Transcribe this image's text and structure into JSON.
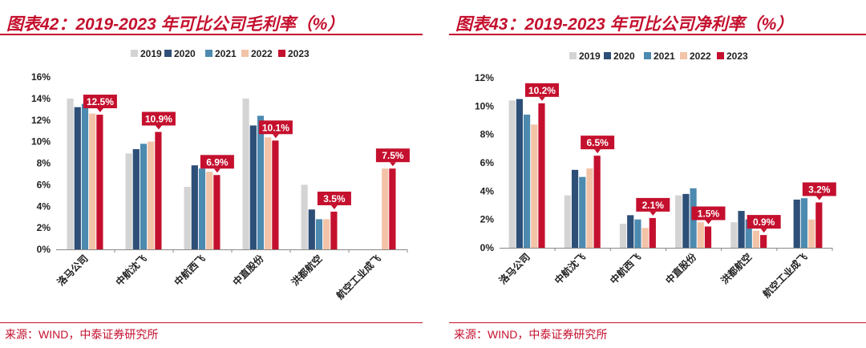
{
  "colors": {
    "accent": "#c4102e",
    "series": [
      "#d4d4d4",
      "#2d4f78",
      "#4d8ab0",
      "#f3c3a8",
      "#c4102e"
    ]
  },
  "panels": [
    {
      "title": "图表42：2019-2023 年可比公司毛利率（%）",
      "source": "来源：WIND，中泰证券研究所"
    },
    {
      "title": "图表43：2019-2023 年可比公司净利率（%）",
      "source": "来源：WIND，中泰证券研究所"
    }
  ],
  "chart_data": [
    {
      "type": "bar",
      "title": "2019-2023 年可比公司毛利率（%）",
      "categories": [
        "洛马公司",
        "中航沈飞",
        "中航西飞",
        "中直股份",
        "洪都航空",
        "航空工业成飞"
      ],
      "series": [
        {
          "name": "2019",
          "values": [
            14.0,
            8.9,
            5.8,
            14.0,
            6.0,
            null
          ]
        },
        {
          "name": "2020",
          "values": [
            13.2,
            9.3,
            7.8,
            11.5,
            3.7,
            null
          ]
        },
        {
          "name": "2021",
          "values": [
            13.5,
            9.8,
            7.5,
            12.4,
            2.8,
            null
          ]
        },
        {
          "name": "2022",
          "values": [
            12.6,
            10.0,
            7.2,
            10.4,
            2.8,
            7.5
          ]
        },
        {
          "name": "2023",
          "values": [
            12.5,
            10.9,
            6.9,
            10.1,
            3.5,
            7.5
          ]
        }
      ],
      "annotations": [
        "12.5%",
        "10.9%",
        "6.9%",
        "10.1%",
        "3.5%",
        "7.5%"
      ],
      "ylim": [
        0,
        16
      ],
      "yticks": [
        "0%",
        "2%",
        "4%",
        "6%",
        "8%",
        "10%",
        "12%",
        "14%",
        "16%"
      ],
      "legend": "top"
    },
    {
      "type": "bar",
      "title": "2019-2023 年可比公司净利率（%）",
      "categories": [
        "洛马公司",
        "中航沈飞",
        "中航西飞",
        "中直股份",
        "洪都航空",
        "航空工业成飞"
      ],
      "series": [
        {
          "name": "2019",
          "values": [
            10.4,
            3.7,
            1.7,
            3.7,
            1.8,
            null
          ]
        },
        {
          "name": "2020",
          "values": [
            10.5,
            5.5,
            2.3,
            3.8,
            2.6,
            3.4
          ]
        },
        {
          "name": "2021",
          "values": [
            9.4,
            5.0,
            2.0,
            4.2,
            2.0,
            3.5
          ]
        },
        {
          "name": "2022",
          "values": [
            8.7,
            5.6,
            1.4,
            1.8,
            1.2,
            2.0
          ]
        },
        {
          "name": "2023",
          "values": [
            10.2,
            6.5,
            2.1,
            1.5,
            0.9,
            3.2
          ]
        }
      ],
      "annotations": [
        "10.2%",
        "6.5%",
        "2.1%",
        "1.5%",
        "0.9%",
        "3.2%"
      ],
      "ylim": [
        0,
        12
      ],
      "yticks": [
        "0%",
        "2%",
        "4%",
        "6%",
        "8%",
        "10%",
        "12%"
      ],
      "legend": "top"
    }
  ]
}
